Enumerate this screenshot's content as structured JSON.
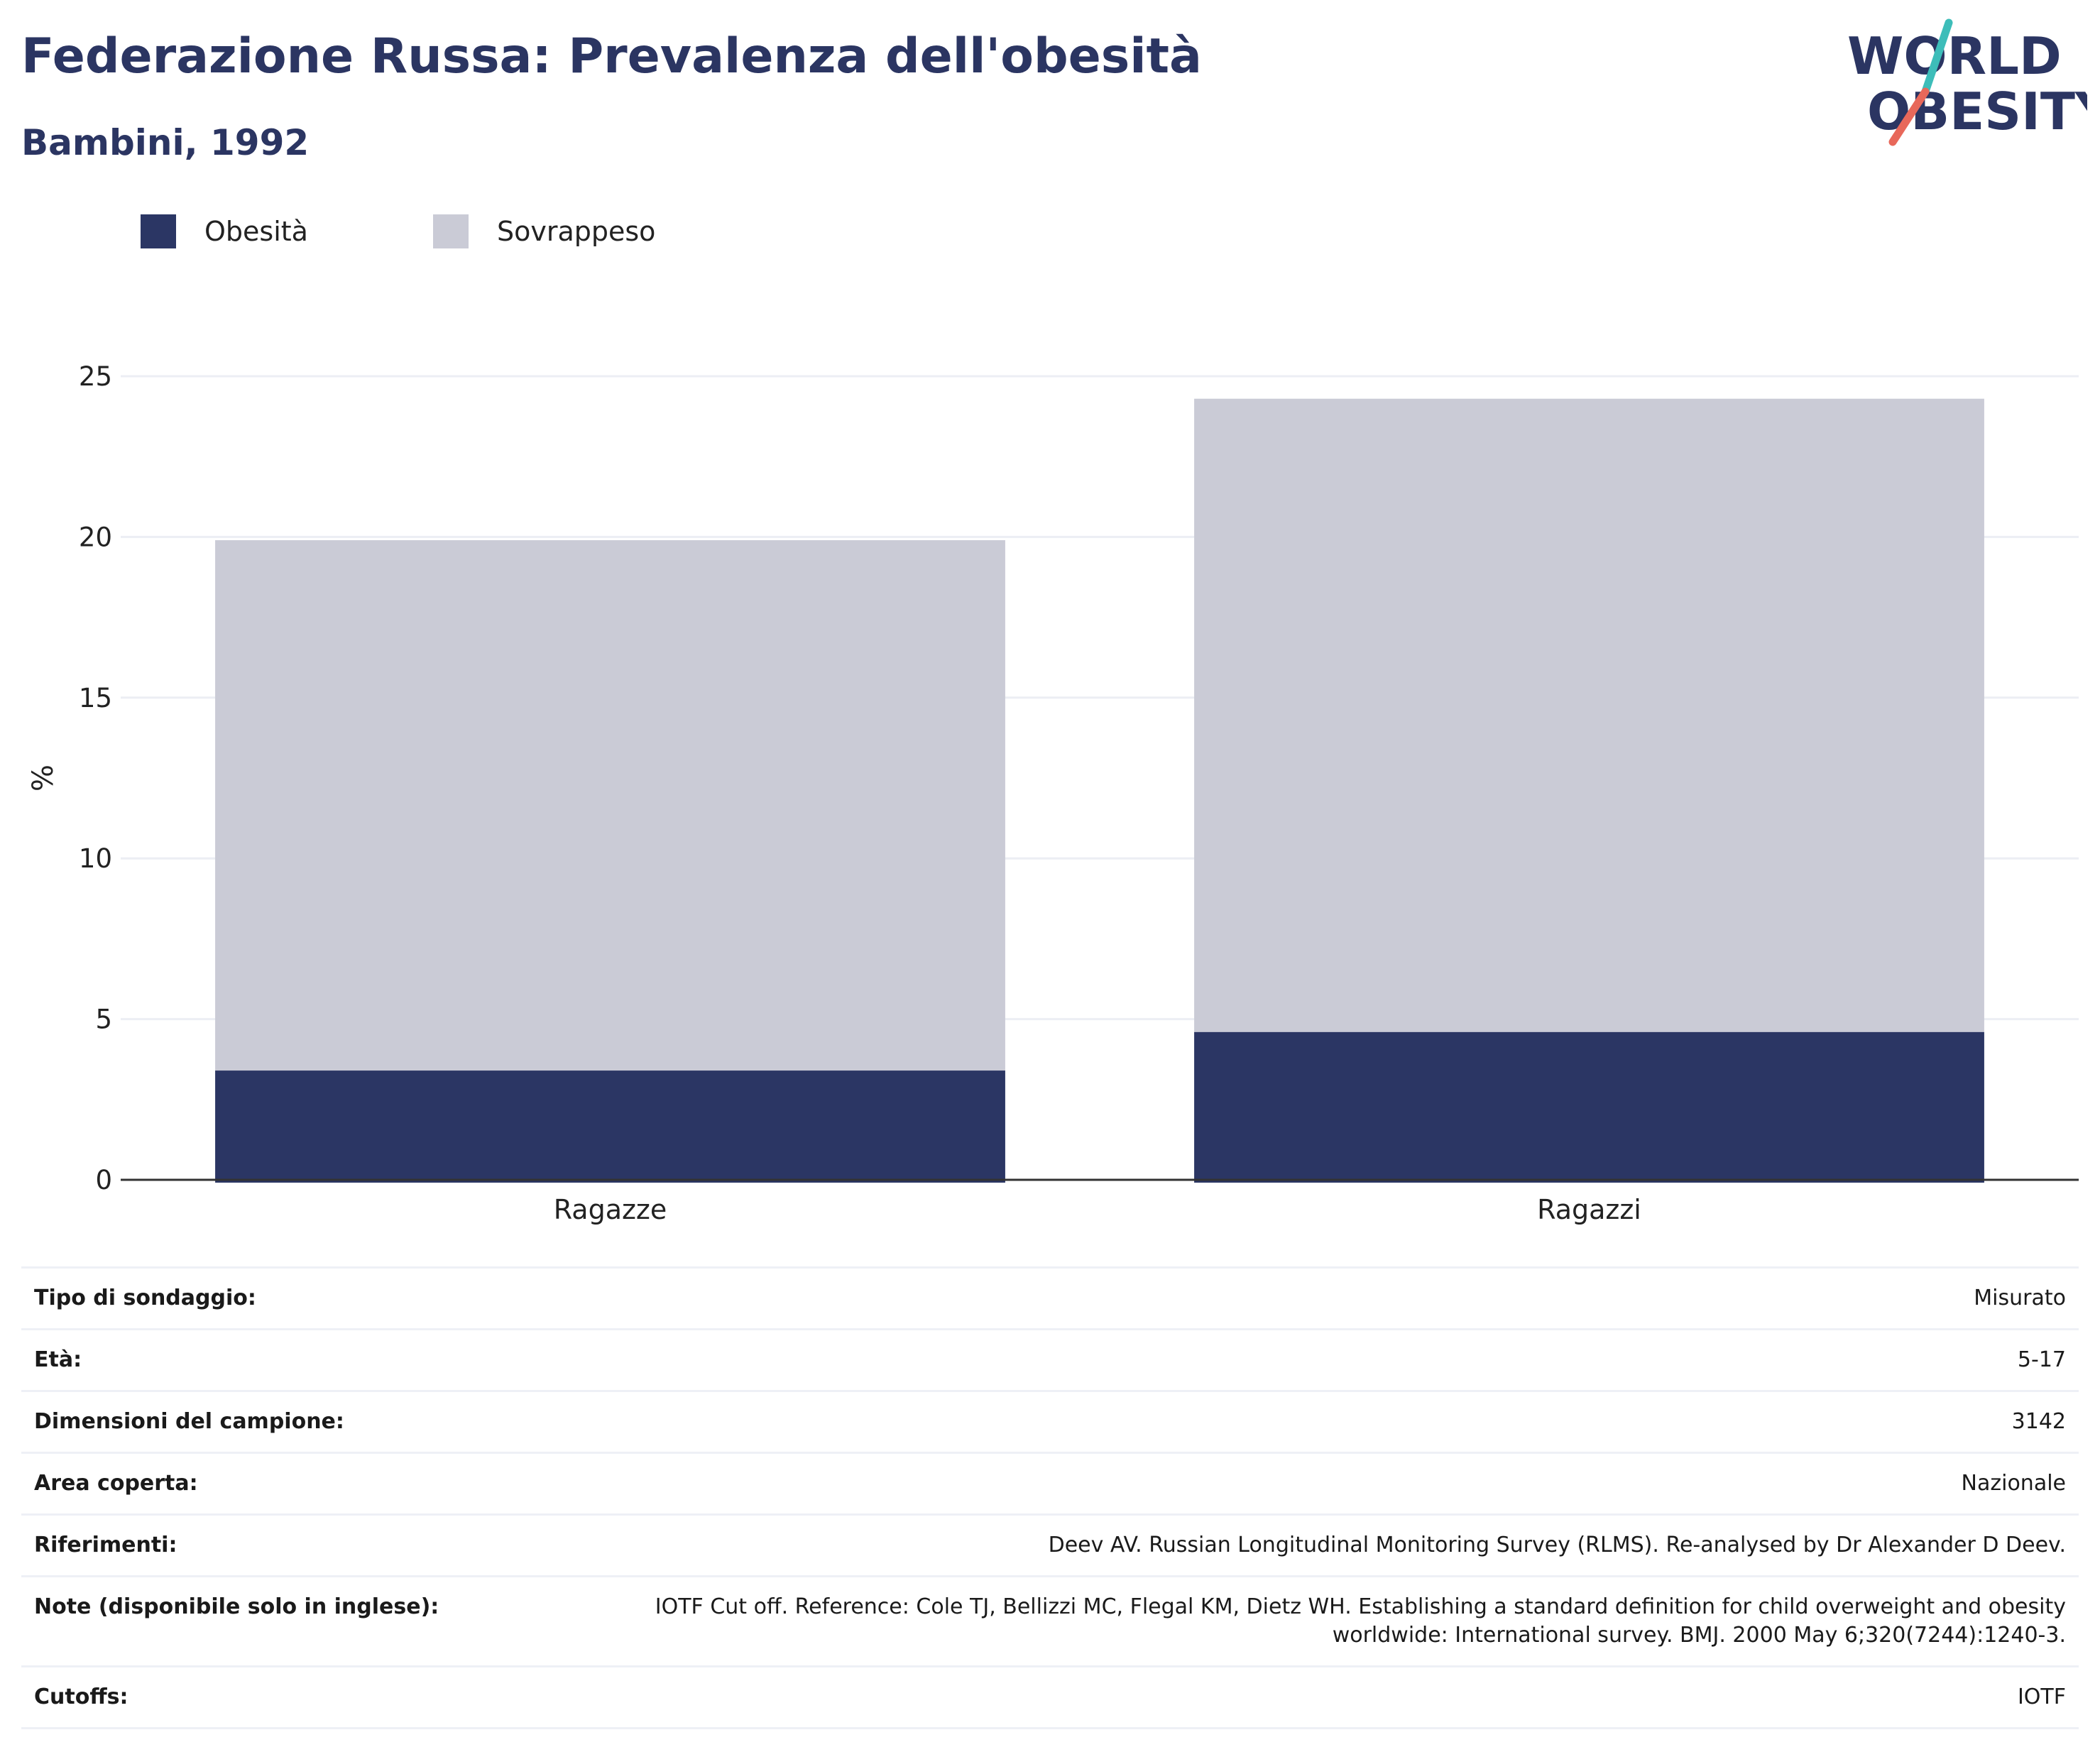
{
  "header": {
    "title": "Federazione Russa: Prevalenza dell'obesità",
    "subtitle": "Bambini, 1992",
    "logo_line1": "WORLD",
    "logo_line2": "OBESITY"
  },
  "colors": {
    "title": "#2b3562",
    "obesity": "#2b3664",
    "overweight": "#cacbd6",
    "gridline": "#eceef4",
    "axis": "#333333",
    "logo_text": "#2b3562",
    "logo_accent_teal": "#3dbdb9",
    "logo_accent_coral": "#e8685a"
  },
  "legend": [
    {
      "label": "Obesità",
      "color": "#2b3664"
    },
    {
      "label": "Sovrappeso",
      "color": "#cacbd6"
    }
  ],
  "chart_data": {
    "type": "bar",
    "stacked": true,
    "categories": [
      "Ragazze",
      "Ragazzi"
    ],
    "series": [
      {
        "name": "Obesità",
        "values": [
          3.4,
          4.6
        ]
      },
      {
        "name": "Sovrappeso",
        "values": [
          16.5,
          19.7
        ]
      }
    ],
    "ylabel": "%",
    "ylim": [
      0,
      25
    ],
    "yticks": [
      0,
      5,
      10,
      15,
      20,
      25
    ],
    "grid": true,
    "legend_position": "top-left"
  },
  "info": [
    {
      "key": "Tipo di sondaggio:",
      "value": "Misurato"
    },
    {
      "key": "Età:",
      "value": "5-17"
    },
    {
      "key": "Dimensioni del campione:",
      "value": "3142"
    },
    {
      "key": "Area coperta:",
      "value": "Nazionale"
    },
    {
      "key": "Riferimenti:",
      "value": "Deev AV. Russian Longitudinal Monitoring Survey (RLMS). Re-analysed by Dr Alexander D Deev."
    },
    {
      "key": "Note (disponibile solo in inglese):",
      "value": "IOTF Cut off. Reference: Cole TJ, Bellizzi MC, Flegal KM, Dietz WH. Establishing a standard definition for child overweight and obesity worldwide: International survey. BMJ. 2000 May 6;320(7244):1240-3."
    },
    {
      "key": "Cutoffs:",
      "value": "IOTF"
    }
  ]
}
